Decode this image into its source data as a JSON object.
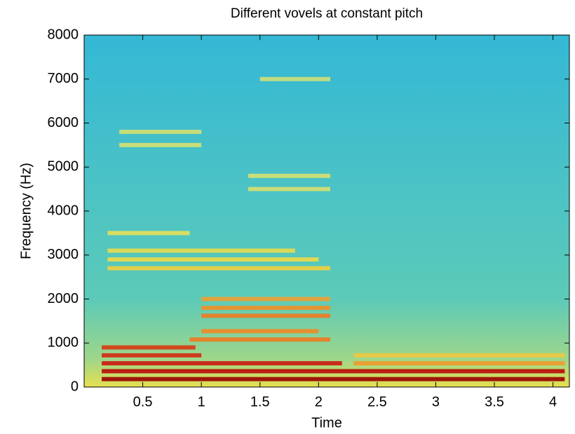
{
  "chart_data": {
    "type": "spectrogram",
    "title": "Different vovels at constant pitch",
    "x_label": "Time",
    "y_label": "Frequency (Hz)",
    "xlim": [
      0,
      4.14
    ],
    "ylim": [
      0,
      8000
    ],
    "xticks": [
      0.5,
      1,
      1.5,
      2,
      2.5,
      3,
      3.5,
      4
    ],
    "yticks": [
      0,
      1000,
      2000,
      3000,
      4000,
      5000,
      6000,
      7000,
      8000
    ],
    "bands": [
      {
        "x": [
          0.15,
          4.1
        ],
        "freq": 180,
        "color": "#9a0000"
      },
      {
        "x": [
          0.15,
          4.1
        ],
        "freq": 360,
        "color": "#b80808"
      },
      {
        "x": [
          0.15,
          2.2
        ],
        "freq": 540,
        "color": "#cc1a10"
      },
      {
        "x": [
          0.15,
          1.0
        ],
        "freq": 720,
        "color": "#d22a10"
      },
      {
        "x": [
          0.15,
          0.95
        ],
        "freq": 900,
        "color": "#d83a12"
      },
      {
        "x": [
          0.9,
          2.1
        ],
        "freq": 1080,
        "color": "#ee7a20"
      },
      {
        "x": [
          1.0,
          2.0
        ],
        "freq": 1270,
        "color": "#f08a24"
      },
      {
        "x": [
          1.0,
          2.1
        ],
        "freq": 1620,
        "color": "#f07a22"
      },
      {
        "x": [
          1.0,
          2.1
        ],
        "freq": 1800,
        "color": "#f09028"
      },
      {
        "x": [
          1.0,
          2.1
        ],
        "freq": 2000,
        "color": "#f0a030"
      },
      {
        "x": [
          2.3,
          4.1
        ],
        "freq": 540,
        "color": "#f09a2c"
      },
      {
        "x": [
          2.3,
          4.1
        ],
        "freq": 720,
        "color": "#f0c840"
      },
      {
        "x": [
          0.2,
          2.1
        ],
        "freq": 2700,
        "color": "#f0d040"
      },
      {
        "x": [
          0.2,
          2.0
        ],
        "freq": 2900,
        "color": "#eed848"
      },
      {
        "x": [
          0.2,
          1.8
        ],
        "freq": 3100,
        "color": "#e8dc50"
      },
      {
        "x": [
          0.2,
          0.9
        ],
        "freq": 3500,
        "color": "#e6e058"
      },
      {
        "x": [
          0.3,
          1.0
        ],
        "freq": 5500,
        "color": "#d6e070"
      },
      {
        "x": [
          0.3,
          1.0
        ],
        "freq": 5800,
        "color": "#d6e070"
      },
      {
        "x": [
          1.4,
          2.1
        ],
        "freq": 4500,
        "color": "#d6e070"
      },
      {
        "x": [
          1.4,
          2.1
        ],
        "freq": 4800,
        "color": "#d6e070"
      },
      {
        "x": [
          1.5,
          2.1
        ],
        "freq": 7000,
        "color": "#d0e078"
      }
    ]
  }
}
